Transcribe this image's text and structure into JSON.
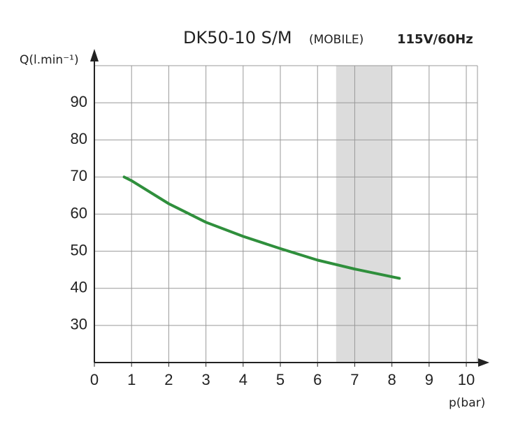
{
  "chart_data": {
    "type": "line",
    "title": "DK50-10 S/M",
    "subtitle": "(MOBILE)",
    "annotation": "115V/60Hz",
    "y_label": "Q(l.min⁻¹)",
    "x_label": "p(bar)",
    "x": [
      0.8,
      1,
      2,
      3,
      4,
      5,
      6,
      7,
      8.2
    ],
    "series": [
      {
        "color": "#2f8f3c",
        "values": [
          70,
          69,
          62.8,
          57.8,
          54,
          50.7,
          47.6,
          45.2,
          42.7
        ]
      }
    ],
    "xlim": [
      0,
      10.3
    ],
    "xticks": [
      0,
      1,
      2,
      3,
      4,
      5,
      6,
      7,
      8,
      9,
      10
    ],
    "ylim": [
      20,
      100
    ],
    "yticks": [
      30,
      40,
      50,
      60,
      70,
      80,
      90
    ],
    "shaded_region": [
      6.5,
      8
    ],
    "grid": true
  }
}
